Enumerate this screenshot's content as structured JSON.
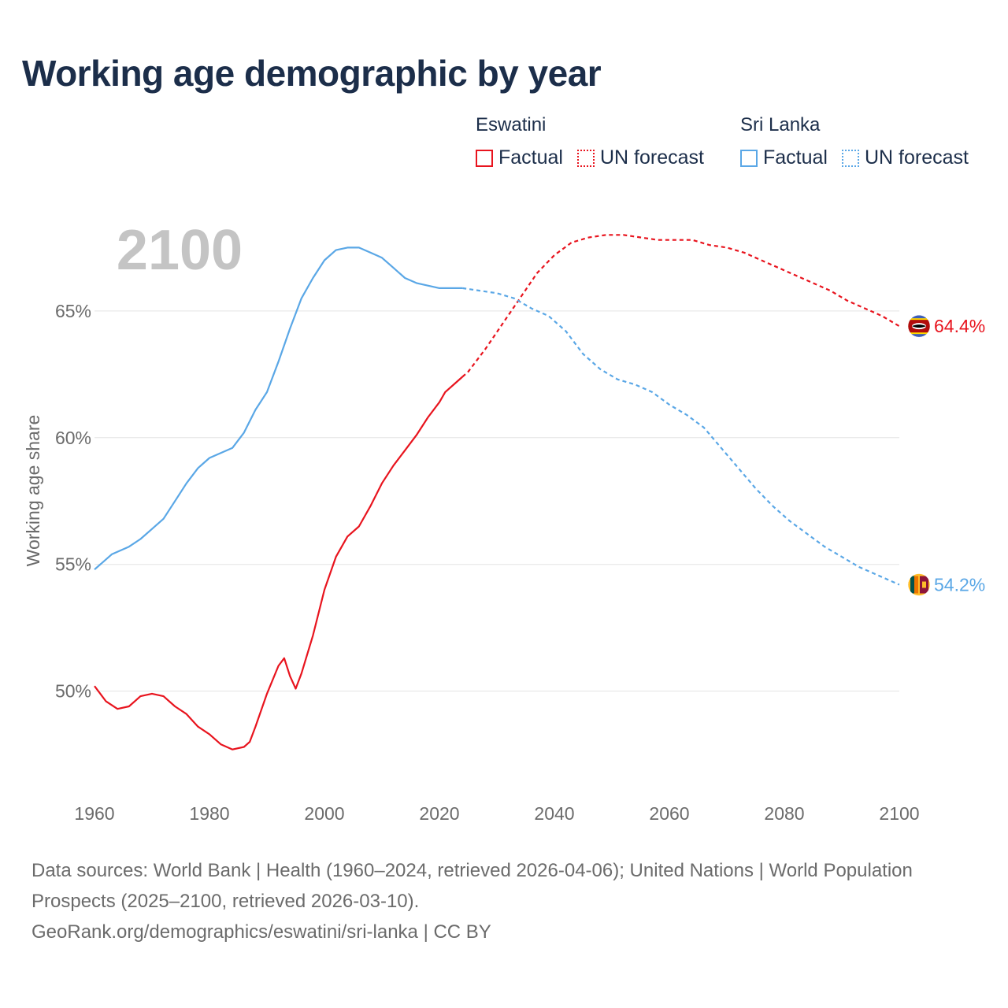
{
  "title": "Working age demographic by year",
  "legend": {
    "groups": [
      {
        "country": "Eswatini",
        "color": "#e8141e",
        "factual_label": "Factual",
        "forecast_label": "UN forecast"
      },
      {
        "country": "Sri Lanka",
        "color": "#5aa7e6",
        "factual_label": "Factual",
        "forecast_label": "UN forecast"
      }
    ]
  },
  "chart_data": {
    "type": "line",
    "year_label": "2100",
    "ylabel": "Working age share",
    "xlim": [
      1960,
      2100
    ],
    "ylim": [
      46.2,
      69.5
    ],
    "x_ticks": [
      1960,
      1980,
      2000,
      2020,
      2040,
      2060,
      2080,
      2100
    ],
    "x_tick_labels": [
      "1960",
      "1980",
      "2000",
      "2020",
      "2040",
      "2060",
      "2080",
      "2100"
    ],
    "y_ticks": [
      50,
      55,
      60,
      65
    ],
    "y_tick_labels": [
      "50%",
      "55%",
      "60%",
      "65%"
    ],
    "series": [
      {
        "name": "Eswatini",
        "color": "#e8141e",
        "end_label": "64.4%",
        "factual": [
          [
            1960,
            50.2
          ],
          [
            1962,
            49.6
          ],
          [
            1964,
            49.3
          ],
          [
            1966,
            49.4
          ],
          [
            1968,
            49.8
          ],
          [
            1970,
            49.9
          ],
          [
            1972,
            49.8
          ],
          [
            1974,
            49.4
          ],
          [
            1976,
            49.1
          ],
          [
            1978,
            48.6
          ],
          [
            1980,
            48.3
          ],
          [
            1982,
            47.9
          ],
          [
            1984,
            47.7
          ],
          [
            1986,
            47.8
          ],
          [
            1987,
            48.0
          ],
          [
            1988,
            48.6
          ],
          [
            1990,
            49.9
          ],
          [
            1992,
            51.0
          ],
          [
            1993,
            51.3
          ],
          [
            1994,
            50.6
          ],
          [
            1995,
            50.1
          ],
          [
            1996,
            50.7
          ],
          [
            1998,
            52.2
          ],
          [
            2000,
            54.0
          ],
          [
            2002,
            55.3
          ],
          [
            2004,
            56.1
          ],
          [
            2006,
            56.5
          ],
          [
            2008,
            57.3
          ],
          [
            2010,
            58.2
          ],
          [
            2012,
            58.9
          ],
          [
            2014,
            59.5
          ],
          [
            2016,
            60.1
          ],
          [
            2018,
            60.8
          ],
          [
            2020,
            61.4
          ],
          [
            2021,
            61.8
          ],
          [
            2023,
            62.2
          ],
          [
            2024,
            62.4
          ]
        ],
        "forecast": [
          [
            2024,
            62.4
          ],
          [
            2025,
            62.6
          ],
          [
            2028,
            63.5
          ],
          [
            2031,
            64.5
          ],
          [
            2034,
            65.5
          ],
          [
            2037,
            66.5
          ],
          [
            2040,
            67.2
          ],
          [
            2043,
            67.7
          ],
          [
            2046,
            67.9
          ],
          [
            2049,
            68.0
          ],
          [
            2052,
            68.0
          ],
          [
            2055,
            67.9
          ],
          [
            2058,
            67.8
          ],
          [
            2061,
            67.8
          ],
          [
            2064,
            67.8
          ],
          [
            2067,
            67.6
          ],
          [
            2070,
            67.5
          ],
          [
            2073,
            67.3
          ],
          [
            2076,
            67.0
          ],
          [
            2079,
            66.7
          ],
          [
            2082,
            66.4
          ],
          [
            2085,
            66.1
          ],
          [
            2088,
            65.8
          ],
          [
            2091,
            65.4
          ],
          [
            2094,
            65.1
          ],
          [
            2097,
            64.8
          ],
          [
            2100,
            64.4
          ]
        ]
      },
      {
        "name": "Sri Lanka",
        "color": "#5aa7e6",
        "end_label": "54.2%",
        "factual": [
          [
            1960,
            54.8
          ],
          [
            1963,
            55.4
          ],
          [
            1966,
            55.7
          ],
          [
            1968,
            56.0
          ],
          [
            1970,
            56.4
          ],
          [
            1972,
            56.8
          ],
          [
            1974,
            57.5
          ],
          [
            1976,
            58.2
          ],
          [
            1978,
            58.8
          ],
          [
            1980,
            59.2
          ],
          [
            1982,
            59.4
          ],
          [
            1984,
            59.6
          ],
          [
            1986,
            60.2
          ],
          [
            1988,
            61.1
          ],
          [
            1990,
            61.8
          ],
          [
            1992,
            63.0
          ],
          [
            1994,
            64.3
          ],
          [
            1996,
            65.5
          ],
          [
            1998,
            66.3
          ],
          [
            2000,
            67.0
          ],
          [
            2002,
            67.4
          ],
          [
            2004,
            67.5
          ],
          [
            2006,
            67.5
          ],
          [
            2008,
            67.3
          ],
          [
            2010,
            67.1
          ],
          [
            2012,
            66.7
          ],
          [
            2014,
            66.3
          ],
          [
            2016,
            66.1
          ],
          [
            2018,
            66.0
          ],
          [
            2020,
            65.9
          ],
          [
            2022,
            65.9
          ],
          [
            2024,
            65.9
          ]
        ],
        "forecast": [
          [
            2024,
            65.9
          ],
          [
            2027,
            65.8
          ],
          [
            2030,
            65.7
          ],
          [
            2033,
            65.5
          ],
          [
            2036,
            65.1
          ],
          [
            2039,
            64.8
          ],
          [
            2042,
            64.2
          ],
          [
            2045,
            63.3
          ],
          [
            2048,
            62.7
          ],
          [
            2051,
            62.3
          ],
          [
            2054,
            62.1
          ],
          [
            2057,
            61.8
          ],
          [
            2060,
            61.3
          ],
          [
            2063,
            60.9
          ],
          [
            2066,
            60.4
          ],
          [
            2069,
            59.6
          ],
          [
            2072,
            58.8
          ],
          [
            2075,
            58.0
          ],
          [
            2078,
            57.3
          ],
          [
            2081,
            56.7
          ],
          [
            2084,
            56.2
          ],
          [
            2087,
            55.7
          ],
          [
            2090,
            55.3
          ],
          [
            2093,
            54.9
          ],
          [
            2096,
            54.6
          ],
          [
            2100,
            54.2
          ]
        ]
      }
    ]
  },
  "footer": {
    "sources": "Data sources: World Bank | Health (1960–2024, retrieved 2026-04-06); United Nations | World Population Prospects (2025–2100, retrieved 2026-03-10).",
    "attribution": "GeoRank.org/demographics/eswatini/sri-lanka | CC BY"
  }
}
